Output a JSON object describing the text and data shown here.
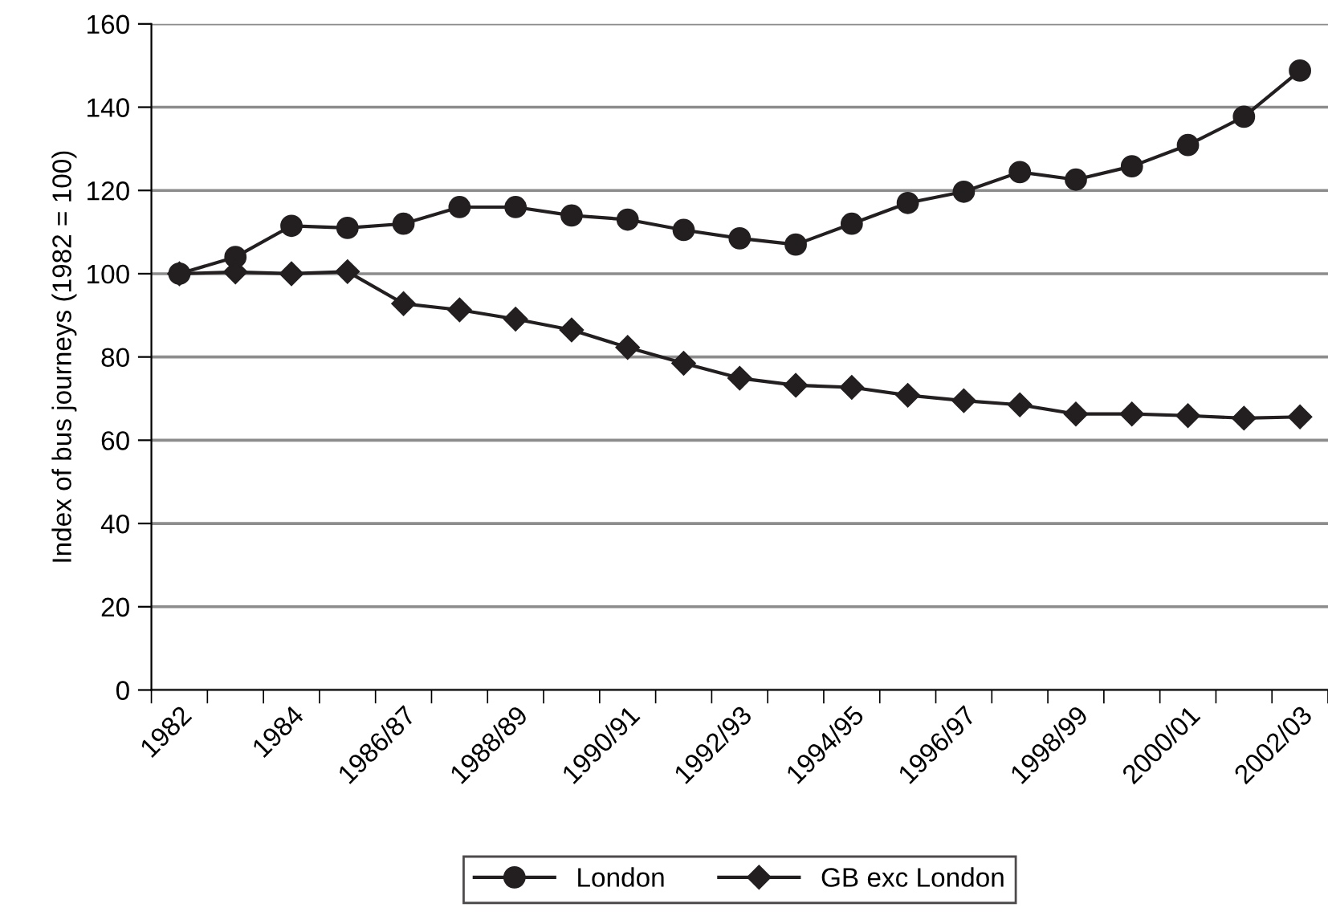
{
  "chart_data": {
    "type": "line",
    "ylabel": "Index of bus journeys (1982 = 100)",
    "categories": [
      "1982",
      null,
      "1984",
      null,
      "1986/87",
      null,
      "1988/89",
      null,
      "1990/91",
      null,
      "1992/93",
      null,
      "1994/95",
      null,
      "1996/97",
      null,
      "1998/99",
      null,
      "2000/01",
      null,
      "2002/03"
    ],
    "series": [
      {
        "name": "London",
        "color": "#231f20",
        "marker": "circle",
        "values": [
          100,
          104,
          111.5,
          111,
          112,
          116,
          116,
          114,
          113,
          110.5,
          108.5,
          107,
          112,
          117,
          119.7,
          124.4,
          122.6,
          125.8,
          130.9,
          137.7,
          148.8
        ]
      },
      {
        "name": "GB exc London",
        "color": "#231f20",
        "marker": "diamond",
        "values": [
          100,
          100.4,
          100,
          100.5,
          92.8,
          91.3,
          89.1,
          86.5,
          82.3,
          78.5,
          74.9,
          73.2,
          72.7,
          70.8,
          69.5,
          68.5,
          66.3,
          66.3,
          65.9,
          65.3,
          65.6
        ]
      }
    ],
    "ylim": [
      0,
      160
    ],
    "yticks": [
      0,
      20,
      40,
      60,
      80,
      100,
      120,
      140,
      160
    ],
    "grid": "y",
    "legend": "bottom",
    "line_style": "solid"
  }
}
